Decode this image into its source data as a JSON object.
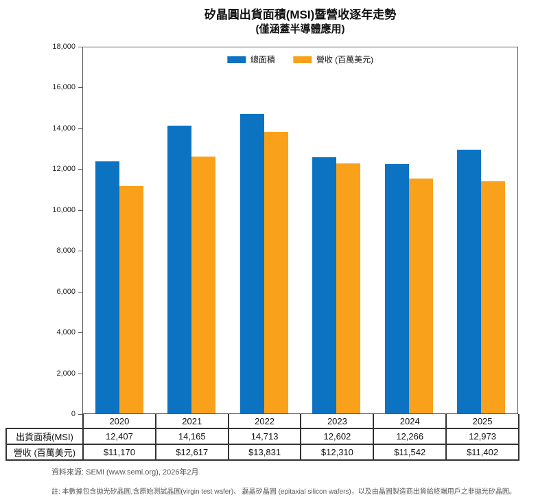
{
  "title": {
    "line1": "矽晶圓出貨面積(MSI)暨營收逐年走勢",
    "line2": "(僅涵蓋半導體應用)"
  },
  "chart_data": {
    "type": "bar",
    "title": "矽晶圓出貨面積(MSI)暨營收逐年走勢 (僅涵蓋半導體應用)",
    "categories": [
      "2020",
      "2021",
      "2022",
      "2023",
      "2024",
      "2025"
    ],
    "series": [
      {
        "key": "total-area",
        "name": "總面積",
        "color": "#0C72C2",
        "values": [
          12407,
          14165,
          14713,
          12602,
          12266,
          12973
        ]
      },
      {
        "key": "revenue",
        "name": "營收 (百萬美元)",
        "color": "#FAA11B",
        "values": [
          11170,
          12617,
          13831,
          12310,
          11542,
          11402
        ]
      }
    ],
    "xlabel": "",
    "ylabel": "",
    "ylim": [
      0,
      18000
    ],
    "yticks": [
      0,
      2000,
      4000,
      6000,
      8000,
      10000,
      12000,
      14000,
      16000,
      18000
    ],
    "grid": false,
    "legend_position": "top-center"
  },
  "table": {
    "year_row": [
      "2020",
      "2021",
      "2022",
      "2023",
      "2024",
      "2025"
    ],
    "rows": [
      {
        "key": "shipment-area",
        "label": "出貨面積(MSI)",
        "values": [
          "12,407",
          "14,165",
          "14,713",
          "12,602",
          "12,266",
          "12,973"
        ]
      },
      {
        "key": "revenue",
        "label": "營收 (百萬美元)",
        "values": [
          "$11,170",
          "$12,617",
          "$13,831",
          "$12,310",
          "$11,542",
          "$11,402"
        ]
      }
    ]
  },
  "footer": {
    "source": "資料來源: SEMI (www.semi.org), 2026年2月",
    "note": "註: 本數據包含拋光矽晶圓,含原始測試晶圓(virgin test wafer)、 磊晶矽晶圓 (epitaxial silicon wafers)，以及由晶圓製造商出貨給終端用戶之非拋光矽晶圓。"
  }
}
